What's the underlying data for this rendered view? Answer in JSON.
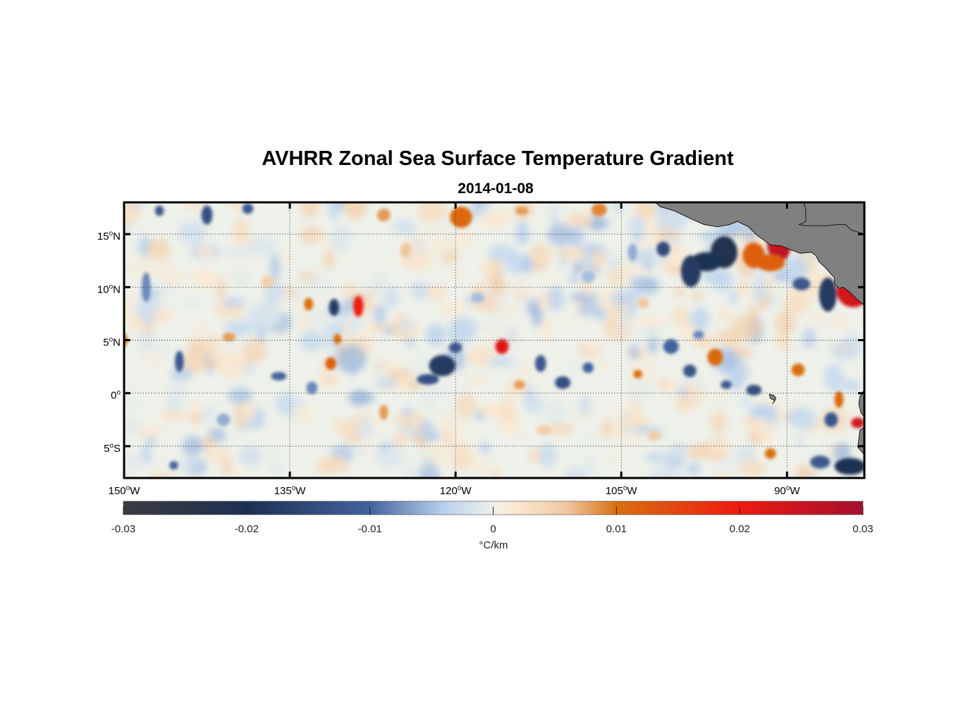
{
  "chart_data": {
    "type": "heatmap",
    "title": "AVHRR Zonal Sea Surface Temperature Gradient",
    "subtitle": "2014-01-08",
    "x_range_deg_lon": [
      -150,
      -83
    ],
    "y_range_deg_lat": [
      -8,
      18
    ],
    "x_ticks": [
      -150,
      -135,
      -120,
      -105,
      -90
    ],
    "x_tick_labels": [
      {
        "num": "150",
        "sup": "o",
        "hemi": "W"
      },
      {
        "num": "135",
        "sup": "o",
        "hemi": "W"
      },
      {
        "num": "120",
        "sup": "o",
        "hemi": "W"
      },
      {
        "num": "105",
        "sup": "o",
        "hemi": "W"
      },
      {
        "num": "90",
        "sup": "o",
        "hemi": "W"
      }
    ],
    "y_ticks": [
      15,
      10,
      5,
      0,
      -5
    ],
    "y_tick_labels": [
      {
        "num": "15",
        "sup": "o",
        "hemi": "N"
      },
      {
        "num": "10",
        "sup": "o",
        "hemi": "N"
      },
      {
        "num": "5",
        "sup": "o",
        "hemi": "N"
      },
      {
        "num": "0",
        "sup": "o",
        "hemi": ""
      },
      {
        "num": "5",
        "sup": "o",
        "hemi": "S"
      }
    ],
    "grid": "dotted",
    "land_color": "#808080",
    "colorbar": {
      "range": [
        -0.03,
        0.03
      ],
      "ticks": [
        -0.03,
        -0.02,
        -0.01,
        0,
        0.01,
        0.02,
        0.03
      ],
      "tick_labels": [
        "-0.03",
        "-0.02",
        "-0.01",
        "0",
        "0.01",
        "0.02",
        "0.03"
      ],
      "label": "°C/km",
      "placement": "bottom",
      "stops": [
        {
          "value": -0.03,
          "color": "#3b3b3f"
        },
        {
          "value": -0.02,
          "color": "#1e3053"
        },
        {
          "value": -0.01,
          "color": "#43639e"
        },
        {
          "value": -0.004,
          "color": "#b9d1ee"
        },
        {
          "value": 0,
          "color": "#eef1ea"
        },
        {
          "value": 0.002,
          "color": "#fbe7cf"
        },
        {
          "value": 0.006,
          "color": "#efc7a0"
        },
        {
          "value": 0.01,
          "color": "#d9700f"
        },
        {
          "value": 0.02,
          "color": "#ee1a10"
        },
        {
          "value": 0.03,
          "color": "#a50f2f"
        }
      ]
    },
    "features": [
      {
        "lon": -90.7,
        "lat": 14.2,
        "rx": 1.1,
        "ry": 1.8,
        "value": 0.026
      },
      {
        "lon": -91.5,
        "lat": 12.3,
        "rx": 1.3,
        "ry": 0.8,
        "value": 0.012
      },
      {
        "lon": -93.0,
        "lat": 13.0,
        "rx": 1.0,
        "ry": 1.2,
        "value": 0.012
      },
      {
        "lon": -95.7,
        "lat": 13.3,
        "rx": 1.2,
        "ry": 1.5,
        "value": -0.022
      },
      {
        "lon": -97.3,
        "lat": 12.4,
        "rx": 1.4,
        "ry": 0.9,
        "value": -0.02
      },
      {
        "lon": -98.7,
        "lat": 11.5,
        "rx": 0.9,
        "ry": 1.5,
        "value": -0.018
      },
      {
        "lon": -101.2,
        "lat": 13.6,
        "rx": 0.6,
        "ry": 0.7,
        "value": -0.015
      },
      {
        "lon": -84.0,
        "lat": 9.6,
        "rx": 1.5,
        "ry": 1.5,
        "value": 0.024
      },
      {
        "lon": -83.0,
        "lat": 10.3,
        "rx": 0.8,
        "ry": 0.9,
        "value": 0.015
      },
      {
        "lon": -86.3,
        "lat": 9.3,
        "rx": 0.8,
        "ry": 1.6,
        "value": -0.018
      },
      {
        "lon": -88.7,
        "lat": 10.3,
        "rx": 0.8,
        "ry": 0.6,
        "value": -0.012
      },
      {
        "lon": -128.8,
        "lat": 8.2,
        "rx": 0.45,
        "ry": 1.0,
        "value": 0.02
      },
      {
        "lon": -131.0,
        "lat": 8.1,
        "rx": 0.45,
        "ry": 0.8,
        "value": -0.018
      },
      {
        "lon": -133.3,
        "lat": 8.4,
        "rx": 0.4,
        "ry": 0.6,
        "value": 0.01
      },
      {
        "lon": -115.8,
        "lat": 4.4,
        "rx": 0.6,
        "ry": 0.7,
        "value": 0.022
      },
      {
        "lon": -121.2,
        "lat": 2.6,
        "rx": 1.2,
        "ry": 1.0,
        "value": -0.018
      },
      {
        "lon": -122.5,
        "lat": 1.3,
        "rx": 1.0,
        "ry": 0.5,
        "value": -0.014
      },
      {
        "lon": -120.0,
        "lat": 4.3,
        "rx": 0.6,
        "ry": 0.5,
        "value": -0.012
      },
      {
        "lon": -131.3,
        "lat": 2.8,
        "rx": 0.5,
        "ry": 0.6,
        "value": 0.012
      },
      {
        "lon": -130.7,
        "lat": 5.1,
        "rx": 0.35,
        "ry": 0.5,
        "value": 0.01
      },
      {
        "lon": -140.5,
        "lat": 5.3,
        "rx": 0.6,
        "ry": 0.4,
        "value": 0.008
      },
      {
        "lon": -112.3,
        "lat": 2.8,
        "rx": 0.5,
        "ry": 0.8,
        "value": -0.012
      },
      {
        "lon": -110.3,
        "lat": 1.0,
        "rx": 0.7,
        "ry": 0.6,
        "value": -0.014
      },
      {
        "lon": -108.0,
        "lat": 2.4,
        "rx": 0.5,
        "ry": 0.5,
        "value": -0.01
      },
      {
        "lon": -114.2,
        "lat": 0.8,
        "rx": 0.5,
        "ry": 0.4,
        "value": 0.008
      },
      {
        "lon": -119.5,
        "lat": 16.6,
        "rx": 1.0,
        "ry": 1.0,
        "value": 0.011
      },
      {
        "lon": -126.5,
        "lat": 16.8,
        "rx": 0.6,
        "ry": 0.6,
        "value": 0.008
      },
      {
        "lon": -107.0,
        "lat": 17.3,
        "rx": 0.7,
        "ry": 0.6,
        "value": 0.009
      },
      {
        "lon": -114.0,
        "lat": 17.2,
        "rx": 0.6,
        "ry": 0.4,
        "value": 0.008
      },
      {
        "lon": -146.8,
        "lat": 17.2,
        "rx": 0.4,
        "ry": 0.5,
        "value": -0.012
      },
      {
        "lon": -142.5,
        "lat": 16.8,
        "rx": 0.5,
        "ry": 0.9,
        "value": -0.014
      },
      {
        "lon": -138.8,
        "lat": 17.4,
        "rx": 0.5,
        "ry": 0.5,
        "value": -0.012
      },
      {
        "lon": -148.0,
        "lat": 10.0,
        "rx": 0.4,
        "ry": 1.4,
        "value": -0.008
      },
      {
        "lon": -145.0,
        "lat": 3.0,
        "rx": 0.4,
        "ry": 1.0,
        "value": -0.012
      },
      {
        "lon": -136.0,
        "lat": 1.6,
        "rx": 0.7,
        "ry": 0.4,
        "value": -0.01
      },
      {
        "lon": -133.0,
        "lat": 0.5,
        "rx": 0.5,
        "ry": 0.6,
        "value": -0.008
      },
      {
        "lon": -100.5,
        "lat": 4.4,
        "rx": 0.7,
        "ry": 0.7,
        "value": -0.01
      },
      {
        "lon": -98.8,
        "lat": 2.1,
        "rx": 0.6,
        "ry": 0.6,
        "value": -0.013
      },
      {
        "lon": -96.5,
        "lat": 3.4,
        "rx": 0.7,
        "ry": 0.8,
        "value": 0.011
      },
      {
        "lon": -93.0,
        "lat": 0.3,
        "rx": 0.7,
        "ry": 0.5,
        "value": -0.014
      },
      {
        "lon": -95.5,
        "lat": 0.8,
        "rx": 0.5,
        "ry": 0.4,
        "value": -0.012
      },
      {
        "lon": -89.0,
        "lat": 2.2,
        "rx": 0.6,
        "ry": 0.6,
        "value": 0.01
      },
      {
        "lon": -85.3,
        "lat": -0.6,
        "rx": 0.4,
        "ry": 0.8,
        "value": 0.011
      },
      {
        "lon": -83.6,
        "lat": -2.8,
        "rx": 0.6,
        "ry": 0.5,
        "value": 0.024
      },
      {
        "lon": -86.0,
        "lat": -2.5,
        "rx": 0.6,
        "ry": 0.7,
        "value": -0.013
      },
      {
        "lon": -84.3,
        "lat": -6.9,
        "rx": 1.4,
        "ry": 0.8,
        "value": -0.02
      },
      {
        "lon": -87.0,
        "lat": -6.5,
        "rx": 0.9,
        "ry": 0.6,
        "value": -0.012
      },
      {
        "lon": -91.5,
        "lat": -5.7,
        "rx": 0.5,
        "ry": 0.5,
        "value": 0.01
      },
      {
        "lon": -145.5,
        "lat": -6.8,
        "rx": 0.4,
        "ry": 0.4,
        "value": -0.01
      },
      {
        "lon": -126.5,
        "lat": -1.8,
        "rx": 0.4,
        "ry": 0.7,
        "value": 0.008
      },
      {
        "lon": -103.5,
        "lat": 1.8,
        "rx": 0.4,
        "ry": 0.4,
        "value": 0.01
      },
      {
        "lon": -98.0,
        "lat": 5.5,
        "rx": 0.5,
        "ry": 0.4,
        "value": -0.008
      },
      {
        "lon": -150.0,
        "lat": 5.0,
        "rx": 0.3,
        "ry": 0.6,
        "value": 0.01
      },
      {
        "lon": -104.0,
        "lat": 13.3,
        "rx": 0.4,
        "ry": 0.8,
        "value": -0.006
      },
      {
        "lon": -103.0,
        "lat": 8.5,
        "rx": 0.5,
        "ry": 0.5,
        "value": 0.006
      },
      {
        "lon": -124.5,
        "lat": 13.5,
        "rx": 0.5,
        "ry": 0.7,
        "value": 0.006
      },
      {
        "lon": -118.0,
        "lat": 9.0,
        "rx": 0.6,
        "ry": 0.5,
        "value": -0.005
      },
      {
        "lon": -137.0,
        "lat": 10.5,
        "rx": 0.6,
        "ry": 0.6,
        "value": 0.005
      },
      {
        "lon": -141.0,
        "lat": -2.5,
        "rx": 0.6,
        "ry": 0.6,
        "value": -0.006
      },
      {
        "lon": -112.0,
        "lat": -3.5,
        "rx": 0.7,
        "ry": 0.5,
        "value": 0.005
      },
      {
        "lon": -108.0,
        "lat": 11.0,
        "rx": 0.6,
        "ry": 0.6,
        "value": -0.005
      },
      {
        "lon": -102.0,
        "lat": -4.0,
        "rx": 0.6,
        "ry": 0.5,
        "value": 0.005
      }
    ],
    "land": [
      {
        "name": "mexico-central-america",
        "lonlat": [
          [
            -101.9,
            18
          ],
          [
            -101.5,
            17.6
          ],
          [
            -100.2,
            17.2
          ],
          [
            -98.8,
            16.5
          ],
          [
            -97.5,
            15.9
          ],
          [
            -96.3,
            15.7
          ],
          [
            -95.2,
            15.9
          ],
          [
            -94.5,
            16.2
          ],
          [
            -93.5,
            15.7
          ],
          [
            -92.6,
            14.8
          ],
          [
            -91.5,
            14.0
          ],
          [
            -90.5,
            13.9
          ],
          [
            -89.6,
            13.5
          ],
          [
            -88.8,
            13.2
          ],
          [
            -87.8,
            13.3
          ],
          [
            -87.4,
            13.0
          ],
          [
            -87.1,
            12.4
          ],
          [
            -86.5,
            11.8
          ],
          [
            -86.0,
            11.2
          ],
          [
            -85.7,
            10.9
          ],
          [
            -85.7,
            10.3
          ],
          [
            -85.3,
            9.9
          ],
          [
            -84.9,
            10.0
          ],
          [
            -84.3,
            9.5
          ],
          [
            -83.6,
            8.8
          ],
          [
            -83.0,
            8.3
          ],
          [
            -83.0,
            18
          ],
          [
            -101.9,
            18
          ]
        ]
      },
      {
        "name": "yucatan-belize",
        "lonlat": [
          [
            -88.5,
            18
          ],
          [
            -88.3,
            17.3
          ],
          [
            -88.3,
            16.2
          ],
          [
            -88.9,
            15.9
          ],
          [
            -88.3,
            15.8
          ],
          [
            -87.5,
            15.8
          ],
          [
            -86.5,
            15.8
          ],
          [
            -85.5,
            15.9
          ],
          [
            -84.7,
            15.9
          ],
          [
            -84.2,
            15.4
          ],
          [
            -83.3,
            15.1
          ],
          [
            -83.0,
            15.0
          ],
          [
            -83.0,
            18
          ],
          [
            -88.5,
            18
          ]
        ]
      },
      {
        "name": "south-america",
        "lonlat": [
          [
            -83.0,
            0.3
          ],
          [
            -83.4,
            -0.3
          ],
          [
            -83.5,
            -1.0
          ],
          [
            -83.3,
            -1.9
          ],
          [
            -83.0,
            -2.2
          ],
          [
            -83.0,
            -3.2
          ],
          [
            -83.4,
            -3.5
          ],
          [
            -83.5,
            -4.3
          ],
          [
            -83.6,
            -5.1
          ],
          [
            -83.0,
            -5.8
          ],
          [
            -83.0,
            -8
          ],
          [
            -83.0,
            0.3
          ]
        ]
      },
      {
        "name": "galapagos",
        "lonlat": [
          [
            -91.6,
            -0.1
          ],
          [
            -91.2,
            -0.2
          ],
          [
            -91.0,
            -0.5
          ],
          [
            -91.3,
            -1.0
          ],
          [
            -91.1,
            -0.7
          ],
          [
            -91.5,
            -0.5
          ]
        ]
      }
    ]
  }
}
